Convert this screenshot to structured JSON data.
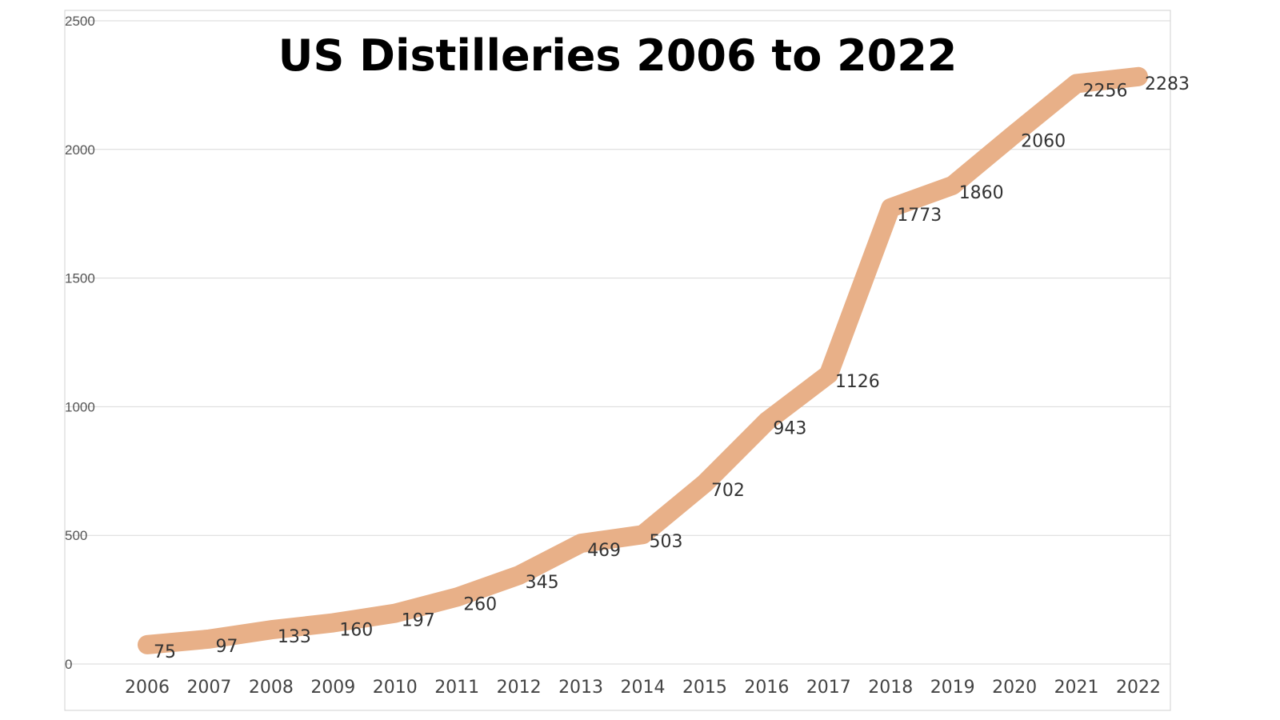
{
  "chart_data": {
    "type": "line",
    "title": "US Distilleries 2006 to 2022",
    "xlabel": "",
    "ylabel": "",
    "ylim": [
      0,
      2500
    ],
    "yticks": [
      0,
      500,
      1000,
      1500,
      2000,
      2500
    ],
    "grid": true,
    "legend": "none",
    "series_color": "#e8b088",
    "x": [
      "2006",
      "2007",
      "2008",
      "2009",
      "2010",
      "2011",
      "2012",
      "2013",
      "2014",
      "2015",
      "2016",
      "2017",
      "2018",
      "2019",
      "2020",
      "2021",
      "2022"
    ],
    "values": [
      75,
      97,
      133,
      160,
      197,
      260,
      345,
      469,
      503,
      702,
      943,
      1126,
      1773,
      1860,
      2060,
      2256,
      2283
    ]
  }
}
